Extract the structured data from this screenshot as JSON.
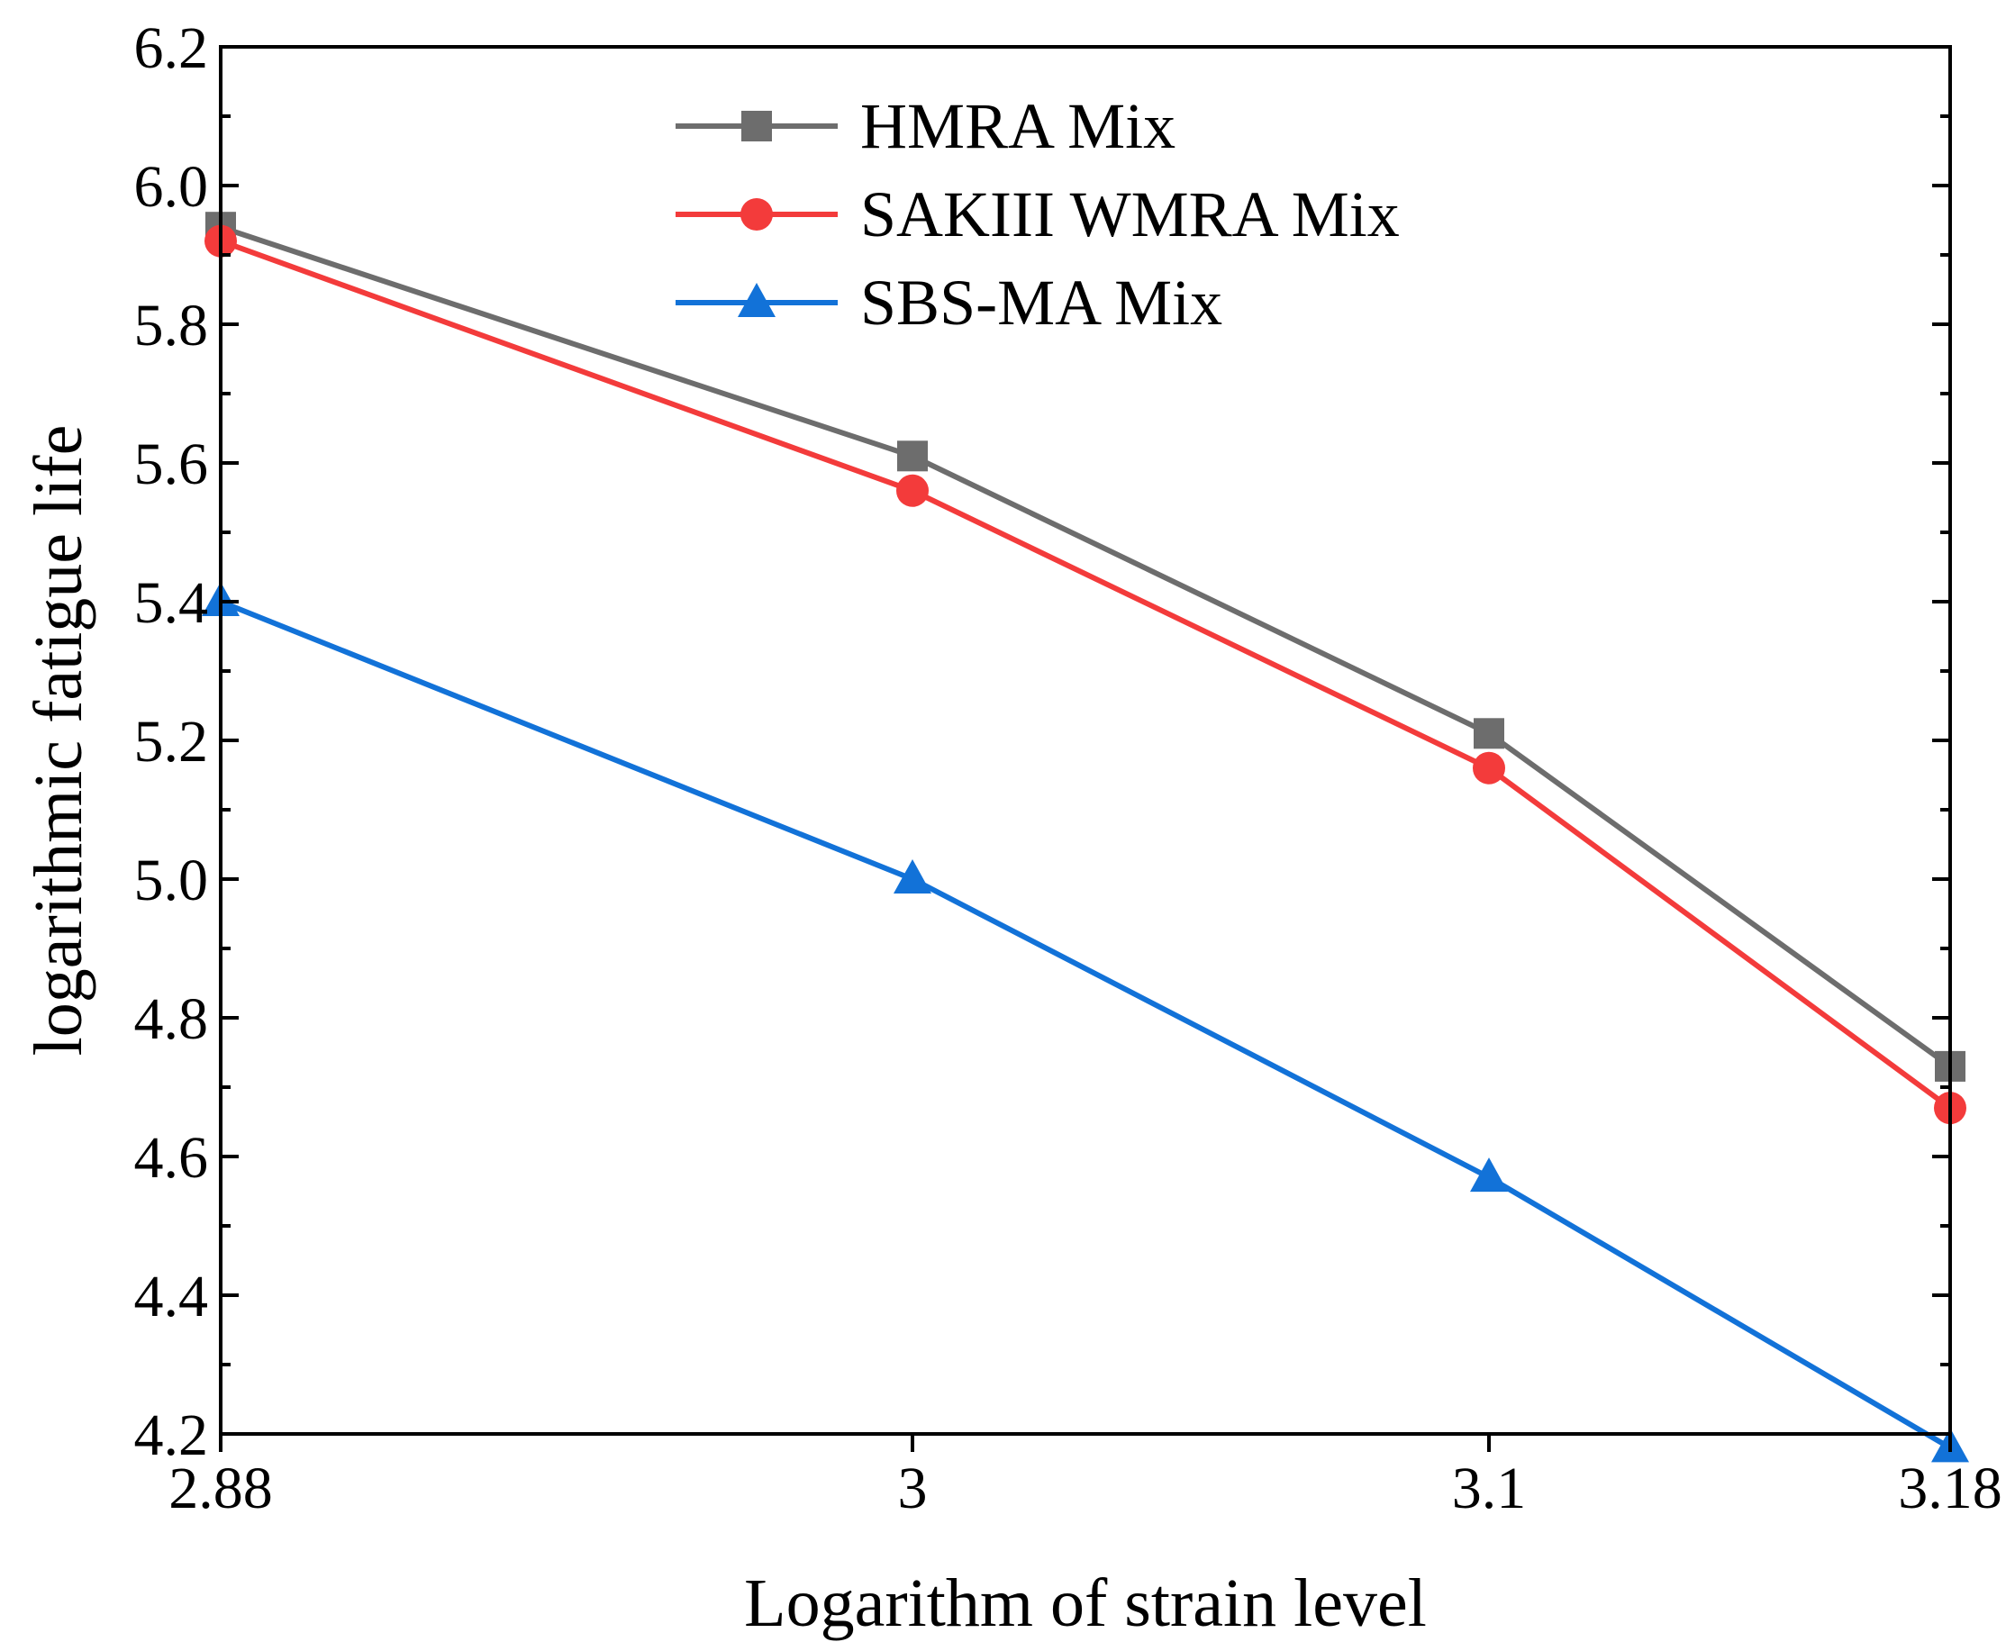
{
  "chart_data": {
    "type": "line",
    "title": "",
    "xlabel": "Logarithm of strain level",
    "ylabel": "logarithmic fatigue life",
    "x": [
      2.88,
      3,
      3.1,
      3.18
    ],
    "xtick_labels": [
      "2.88",
      "3",
      "3.1",
      "3.18"
    ],
    "xlim": [
      2.88,
      3.18
    ],
    "ylim": [
      4.2,
      6.2
    ],
    "yticks": [
      4.2,
      4.4,
      4.6,
      4.8,
      5.0,
      5.2,
      5.4,
      5.6,
      5.8,
      6.0,
      6.2
    ],
    "ytick_labels": [
      "4.2",
      "4.4",
      "4.6",
      "4.8",
      "5.0",
      "5.2",
      "5.4",
      "5.6",
      "5.8",
      "6.0",
      "6.2"
    ],
    "grid": false,
    "legend_position": "top-center",
    "series": [
      {
        "name": "HMRA Mix",
        "marker": "square",
        "color": "#6d6d6d",
        "values": [
          5.94,
          5.61,
          5.21,
          4.73
        ]
      },
      {
        "name": "SAKIII WMRA Mix",
        "marker": "circle",
        "color": "#f33b3b",
        "values": [
          5.92,
          5.56,
          5.16,
          4.67
        ]
      },
      {
        "name": "SBS-MA Mix",
        "marker": "triangle",
        "color": "#1272d8",
        "values": [
          5.4,
          5.0,
          4.57,
          4.18
        ]
      }
    ]
  }
}
